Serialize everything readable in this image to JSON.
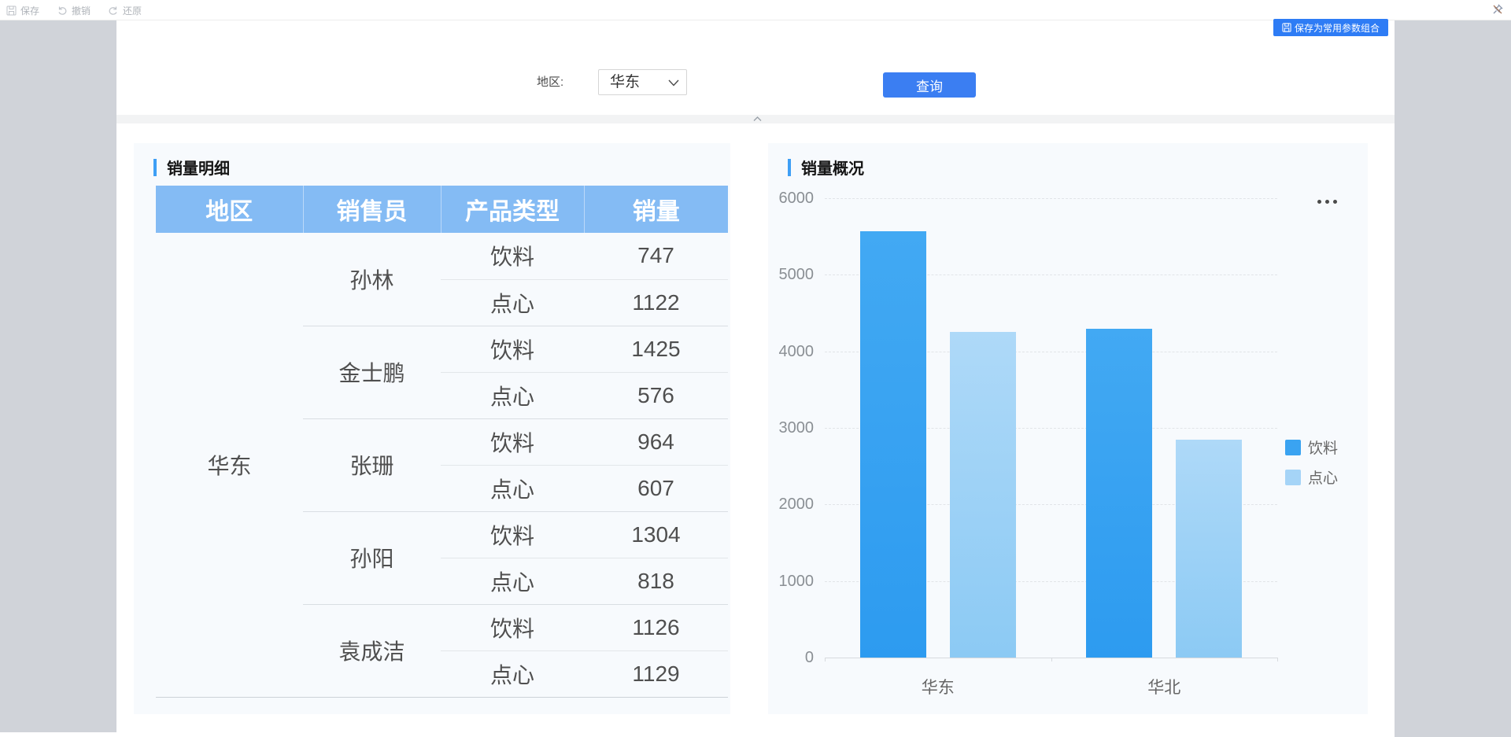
{
  "toolbar": {
    "save": "保存",
    "undo": "撤销",
    "redo": "还原"
  },
  "save_params_button": {
    "label": "保存为常用参数组合"
  },
  "filter": {
    "label": "地区:",
    "selected_value": "华东",
    "query_label": "查询"
  },
  "left_panel": {
    "title": "销量明细",
    "table": {
      "headers": [
        "地区",
        "销售员",
        "产品类型",
        "销量"
      ],
      "region": "华东",
      "groups": [
        {
          "salesperson": "孙林",
          "rows": [
            [
              "饮料",
              "747"
            ],
            [
              "点心",
              "1122"
            ]
          ]
        },
        {
          "salesperson": "金士鹏",
          "rows": [
            [
              "饮料",
              "1425"
            ],
            [
              "点心",
              "576"
            ]
          ]
        },
        {
          "salesperson": "张珊",
          "rows": [
            [
              "饮料",
              "964"
            ],
            [
              "点心",
              "607"
            ]
          ]
        },
        {
          "salesperson": "孙阳",
          "rows": [
            [
              "饮料",
              "1304"
            ],
            [
              "点心",
              "818"
            ]
          ]
        },
        {
          "salesperson": "袁成洁",
          "rows": [
            [
              "饮料",
              "1126"
            ],
            [
              "点心",
              "1129"
            ]
          ]
        }
      ]
    }
  },
  "right_panel": {
    "title": "销量概况"
  },
  "chart_data": {
    "type": "bar",
    "title": "销量概况",
    "categories": [
      "华东",
      "华北"
    ],
    "series": [
      {
        "name": "饮料",
        "values": [
          5566,
          4290
        ],
        "color_top": "#42a9f3",
        "color_bottom": "#2d9bf0",
        "legend_color": "#3aa3f1"
      },
      {
        "name": "点心",
        "values": [
          4252,
          2850
        ],
        "color_top": "#aed9f8",
        "color_bottom": "#8ccaf4",
        "legend_color": "#a5d4f7"
      }
    ],
    "xlabel": "",
    "ylabel": "",
    "ylim": [
      0,
      6000
    ],
    "yticks": [
      0,
      1000,
      2000,
      3000,
      4000,
      5000,
      6000
    ],
    "grid": "dashed-horizontal",
    "legend_position": "right"
  },
  "colors": {
    "accent_blue": "#3e9ff5",
    "table_header_bg": "#84bbf4",
    "query_button": "#3b7ef2",
    "save_params_button": "#2e7cf5",
    "side_strip": "#d0d3d9",
    "panel_bg": "#f7fafd"
  }
}
